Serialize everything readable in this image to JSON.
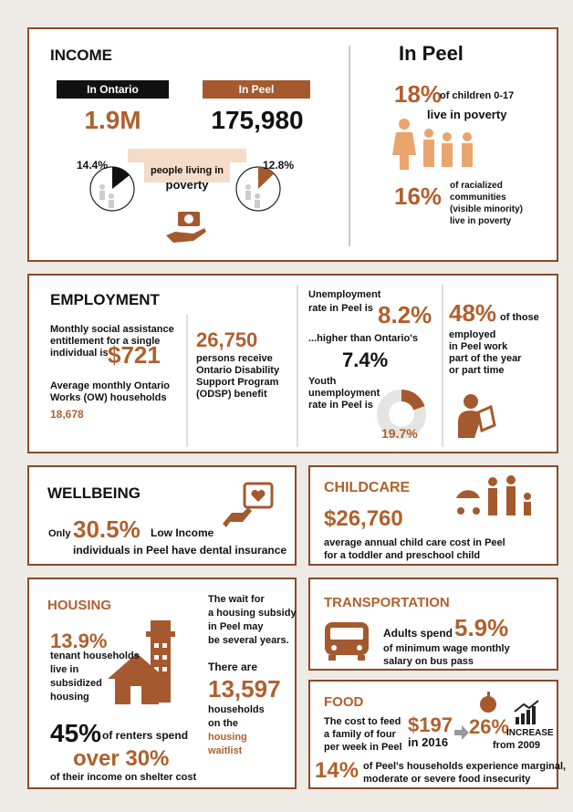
{
  "income": {
    "title": "INCOME",
    "ontario_label": "In Ontario",
    "peel_label": "In Peel",
    "ontario_value": "1.9M",
    "peel_value": "175,980",
    "ontario_pie": {
      "value": 14.4,
      "label": "14.4%"
    },
    "peel_pie": {
      "value": 12.8,
      "label": "12.8%"
    },
    "caption": [
      "people living in",
      "poverty"
    ]
  },
  "in_peel": {
    "title": "In Peel",
    "children_pct": "18%",
    "children_text": [
      "of children 0-17",
      "live in poverty"
    ],
    "racialized_pct": "16%",
    "racialized_text": [
      "of racialized",
      "communities",
      "(visible minority)",
      "live in poverty"
    ]
  },
  "employment": {
    "title": "EMPLOYMENT",
    "assistance_text": [
      "Monthly social assistance",
      "entitlement  for a single",
      "individual is"
    ],
    "assistance_value": "$721",
    "ow_text": [
      "Average monthly Ontario",
      "Works (OW) households"
    ],
    "ow_value": "18,678",
    "odsp_value": "26,750",
    "odsp_text": [
      "persons receive",
      "Ontario Disability",
      "Support Program",
      "(ODSP) benefit"
    ],
    "unemployment_text": [
      "Unemployment",
      "rate in Peel is"
    ],
    "unemployment_value": "8.2%",
    "ontario_text": "...higher than Ontario's",
    "ontario_value": "7.4%",
    "youth_text": [
      "Youth",
      "unemployment",
      "rate in Peel is"
    ],
    "youth_pie": {
      "value": 19.7,
      "label": "19.7%"
    },
    "part_time_pct": "48%",
    "part_time_text": [
      "of those",
      "employed",
      "in Peel  work",
      "part of the year",
      "or part time"
    ]
  },
  "wellbeing": {
    "title": "WELLBEING",
    "only": "Only",
    "value": "30.5%",
    "text": [
      "Low Income",
      "individuals in Peel have dental insurance"
    ]
  },
  "childcare": {
    "title": "CHILDCARE",
    "value": "$26,760",
    "text": [
      "average annual child care cost in Peel",
      "for a toddler and preschool child"
    ]
  },
  "housing": {
    "title": "HOUSING",
    "subsidized_pct": "13.9%",
    "subsidized_text": [
      "tenant households",
      "live in",
      "subsidized",
      "housing"
    ],
    "renters_pct": "45%",
    "renters_text": "of renters spend",
    "renters_share": "over 30%",
    "renters_tail": "of their income on shelter cost",
    "wait_text": [
      "The wait for",
      "a housing subsidy",
      "in Peel may",
      "be several years."
    ],
    "there_are": "There are",
    "waitlist_value": "13,597",
    "waitlist_text": [
      "households",
      "on the"
    ],
    "waitlist_label": [
      "housing",
      "waitlist"
    ]
  },
  "transportation": {
    "title": "TRANSPORTATION",
    "text_a": "Adults spend",
    "value": "5.9%",
    "text_b": [
      "of minimum wage monthly",
      "salary on bus pass"
    ]
  },
  "food": {
    "title": "FOOD",
    "cost_text": [
      "The cost  to feed",
      "a family of four",
      "per week in Peel"
    ],
    "cost_value": "$197",
    "cost_year": "in 2016",
    "increase_pct": "26%",
    "increase_label": "INCREASE",
    "increase_from": "from 2009",
    "insecurity_pct": "14%",
    "insecurity_text": [
      "of Peel's households experience marginal,",
      "moderate or severe food insecurity"
    ]
  }
}
